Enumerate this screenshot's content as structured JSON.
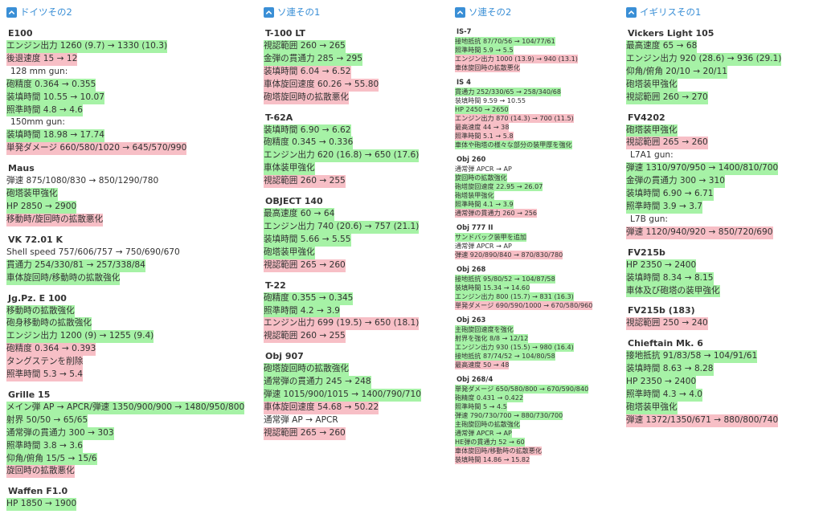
{
  "columns": [
    {
      "title": "ドイツその2",
      "tanks": [
        {
          "name": "E100",
          "lines": [
            {
              "t": "エンジン出力 1260 (9.7) → 1330 (10.3)",
              "c": "g"
            },
            {
              "t": "後退速度 15 → 12",
              "c": "r"
            },
            {
              "t": "128 mm gun:",
              "c": "n sub"
            },
            {
              "t": "砲精度 0.364 → 0.355",
              "c": "g"
            },
            {
              "t": "装填時間 10.55 → 10.07",
              "c": "g"
            },
            {
              "t": "照準時間 4.8 → 4.6",
              "c": "g"
            },
            {
              "t": "150mm gun:",
              "c": "n sub"
            },
            {
              "t": "装填時間 18.98 → 17.74",
              "c": "g"
            },
            {
              "t": "単発ダメージ 660/580/1020 → 645/570/990",
              "c": "r"
            }
          ]
        },
        {
          "name": "Maus",
          "lines": [
            {
              "t": "弾速 875/1080/830 → 850/1290/780",
              "c": "n"
            },
            {
              "t": "砲塔装甲強化",
              "c": "g"
            },
            {
              "t": "HP 2850 → 2900",
              "c": "g"
            },
            {
              "t": "移動時/旋回時の拡散悪化",
              "c": "r"
            }
          ]
        },
        {
          "name": "VK 72.01 K",
          "lines": [
            {
              "t": "Shell speed 757/606/757 → 750/690/670",
              "c": "n"
            },
            {
              "t": "貫通力 254/330/81 → 257/338/84",
              "c": "g"
            },
            {
              "t": "車体旋回時/移動時の拡散強化",
              "c": "g"
            }
          ]
        },
        {
          "name": "Jg.Pz. E 100",
          "lines": [
            {
              "t": "移動時の拡散強化",
              "c": "g"
            },
            {
              "t": "砲身移動時の拡散強化",
              "c": "g"
            },
            {
              "t": "エンジン出力 1200 (9) → 1255 (9.4)",
              "c": "g"
            },
            {
              "t": "砲精度 0.364 → 0.393",
              "c": "r"
            },
            {
              "t": "タングステンを削除",
              "c": "r"
            },
            {
              "t": "照準時間 5.3 → 5.4",
              "c": "r"
            }
          ]
        },
        {
          "name": "Grille 15",
          "lines": [
            {
              "t": "メイン弾 AP → APCR/弾速 1350/900/900 → 1480/950/800",
              "c": "g"
            },
            {
              "t": "射界 50/50 → 65/65",
              "c": "g"
            },
            {
              "t": "通常弾の貫通力 300 → 303",
              "c": "g"
            },
            {
              "t": "照準時間 3.8 → 3.6",
              "c": "g"
            },
            {
              "t": "仰角/俯角 15/5 → 15/6",
              "c": "g"
            },
            {
              "t": "旋回時の拡散悪化",
              "c": "r"
            }
          ]
        },
        {
          "name": "Waffen F1.0",
          "lines": [
            {
              "t": "HP 1850 → 1900",
              "c": "g"
            }
          ]
        }
      ]
    },
    {
      "title": "ソ連その1",
      "tanks": [
        {
          "name": "T-100 LT",
          "lines": [
            {
              "t": "視認範囲 260 → 265",
              "c": "g"
            },
            {
              "t": "金弾の貫通力 285 → 295",
              "c": "g"
            },
            {
              "t": "装填時間 6.04 → 6.52",
              "c": "r"
            },
            {
              "t": "車体旋回速度 60.26 → 55.80",
              "c": "r"
            },
            {
              "t": "砲塔旋回時の拡散悪化",
              "c": "r"
            }
          ]
        },
        {
          "name": "T-62A",
          "lines": [
            {
              "t": "装填時間 6.90 → 6.62",
              "c": "g"
            },
            {
              "t": "砲精度 0.345 → 0.336",
              "c": "g"
            },
            {
              "t": "エンジン出力 620 (16.8) → 650 (17.6)",
              "c": "g"
            },
            {
              "t": "車体装甲強化",
              "c": "g"
            },
            {
              "t": "視認範囲 260 → 255",
              "c": "r"
            }
          ]
        },
        {
          "name": "OBJECT 140",
          "lines": [
            {
              "t": "最高速度 60 → 64",
              "c": "g"
            },
            {
              "t": "エンジン出力 740 (20.6) → 757 (21.1)",
              "c": "g"
            },
            {
              "t": "装填時間 5.66 → 5.55",
              "c": "g"
            },
            {
              "t": "砲塔装甲強化",
              "c": "g"
            },
            {
              "t": "視認範囲 265 → 260",
              "c": "r"
            }
          ]
        },
        {
          "name": "T-22",
          "lines": [
            {
              "t": "砲精度 0.355 → 0.345",
              "c": "g"
            },
            {
              "t": "照準時間 4.2 → 3.9",
              "c": "g"
            },
            {
              "t": "エンジン出力 699 (19.5) → 650 (18.1)",
              "c": "r"
            },
            {
              "t": "視認範囲 260 → 255",
              "c": "r"
            }
          ]
        },
        {
          "name": "Obj 907",
          "lines": [
            {
              "t": "砲塔旋回時の拡散強化",
              "c": "g"
            },
            {
              "t": "通常弾の貫通力 245 → 248",
              "c": "g"
            },
            {
              "t": "弾速 1015/900/1015 → 1400/790/710",
              "c": "g"
            },
            {
              "t": "車体旋回速度 54.68 → 50.22",
              "c": "r"
            },
            {
              "t": "通常弾 AP → APCR",
              "c": "n"
            },
            {
              "t": "視認範囲 265 → 260",
              "c": "r"
            }
          ]
        }
      ]
    },
    {
      "title": "ソ連その2",
      "tanks": [
        {
          "name": "IS-7",
          "lines": [
            {
              "t": "接地抵抗 87/70/56 → 104/77/61",
              "c": "g"
            },
            {
              "t": "照準時間 5.9 → 5.5",
              "c": "g"
            },
            {
              "t": "エンジン出力 1000 (13.9) → 940 (13.1)",
              "c": "r"
            },
            {
              "t": "車体旋回時の拡散悪化",
              "c": "r"
            }
          ]
        },
        {
          "name": "IS 4",
          "lines": [
            {
              "t": "貫通力 252/330/65 → 258/340/68",
              "c": "g"
            },
            {
              "t": "装填時間 9.59 → 10.55",
              "c": "n"
            },
            {
              "t": "HP 2450 → 2650",
              "c": "g"
            },
            {
              "t": "エンジン出力 870 (14.3) → 700 (11.5)",
              "c": "r"
            },
            {
              "t": "最高速度 44 → 38",
              "c": "r"
            },
            {
              "t": "照準時間 5.1 → 5.8",
              "c": "r"
            },
            {
              "t": "車体や砲塔の様々な部分の装甲厚を強化",
              "c": "g"
            }
          ]
        },
        {
          "name": "Obj 260",
          "lines": [
            {
              "t": "通常弾 APCR → AP",
              "c": "n"
            },
            {
              "t": "旋回時の拡散強化",
              "c": "g"
            },
            {
              "t": "砲塔旋回速度 22.95 → 26.07",
              "c": "g"
            },
            {
              "t": "砲塔装甲強化",
              "c": "g"
            },
            {
              "t": "照準時間 4.1 → 3.9",
              "c": "g"
            },
            {
              "t": "通常弾の貫通力 260 → 256",
              "c": "r"
            }
          ]
        },
        {
          "name": "Obj 777 II",
          "lines": [
            {
              "t": "サンドバック装甲を追加",
              "c": "g"
            },
            {
              "t": "通常弾 APCR → AP",
              "c": "n"
            },
            {
              "t": "弾速 920/890/840 → 870/830/780",
              "c": "r"
            }
          ]
        },
        {
          "name": "Obj 268",
          "lines": [
            {
              "t": "接地抵抗 95/80/52 → 104/87/58",
              "c": "g"
            },
            {
              "t": "装填時間 15.34 → 14.60",
              "c": "g"
            },
            {
              "t": "エンジン出力 800 (15.7) → 831 (16.3)",
              "c": "g"
            },
            {
              "t": "単発ダメージ 690/590/1000 → 670/580/960",
              "c": "r"
            }
          ]
        },
        {
          "name": "Obj 263",
          "lines": [
            {
              "t": "主砲旋回速度を強化",
              "c": "g"
            },
            {
              "t": "射界を強化 8/8 → 12/12",
              "c": "g"
            },
            {
              "t": "エンジン出力 930 (15.5) → 980 (16.4)",
              "c": "g"
            },
            {
              "t": "接地抵抗 87/74/52 → 104/80/58",
              "c": "g"
            },
            {
              "t": "最高速度 50 → 48",
              "c": "r"
            }
          ]
        },
        {
          "name": "Obj 268/4",
          "lines": [
            {
              "t": "単発ダメージ 650/580/800 → 670/590/840",
              "c": "g"
            },
            {
              "t": "砲精度 0.431 → 0.422",
              "c": "g"
            },
            {
              "t": "照準時間 5 → 4.5",
              "c": "g"
            },
            {
              "t": "弾速 790/730/700 → 880/730/700",
              "c": "g"
            },
            {
              "t": "主砲旋回時の拡散強化",
              "c": "g"
            },
            {
              "t": "通常弾 APCR → AP",
              "c": "g"
            },
            {
              "t": "HE弾の貫通力 52 → 60",
              "c": "g"
            },
            {
              "t": "車体旋回時/移動時の拡散悪化",
              "c": "r"
            },
            {
              "t": "装填時間 14.86 → 15.82",
              "c": "r"
            }
          ]
        }
      ]
    },
    {
      "title": "イギリスその1",
      "tanks": [
        {
          "name": "Vickers Light 105",
          "lines": [
            {
              "t": "最高速度 65 → 68",
              "c": "g"
            },
            {
              "t": "エンジン出力 920 (28.6) → 936 (29.1)",
              "c": "g"
            },
            {
              "t": "仰角/俯角 20/10 → 20/11",
              "c": "g"
            },
            {
              "t": "砲塔装甲強化",
              "c": "g"
            },
            {
              "t": "視認範囲 260 → 270",
              "c": "g"
            }
          ]
        },
        {
          "name": "FV4202",
          "lines": [
            {
              "t": "砲塔装甲強化",
              "c": "g"
            },
            {
              "t": "視認範囲 265 → 260",
              "c": "r"
            },
            {
              "t": "L7A1 gun:",
              "c": "n sub"
            },
            {
              "t": "弾速 1310/970/950 → 1400/810/700",
              "c": "g"
            },
            {
              "t": "金弾の貫通力 300 → 310",
              "c": "g"
            },
            {
              "t": "装填時間 6.90 → 6.71",
              "c": "g"
            },
            {
              "t": "照準時間 3.9 → 3.7",
              "c": "g"
            },
            {
              "t": "L7B gun:",
              "c": "n sub"
            },
            {
              "t": "弾速 1120/940/920 → 850/720/690",
              "c": "r"
            }
          ]
        },
        {
          "name": "FV215b",
          "lines": [
            {
              "t": "HP 2350 → 2400",
              "c": "g"
            },
            {
              "t": "装填時間 8.34 → 8.15",
              "c": "g"
            },
            {
              "t": "車体及び砲塔の装甲強化",
              "c": "g"
            }
          ]
        },
        {
          "name": "FV215b (183)",
          "lines": [
            {
              "t": "視認範囲 250 → 240",
              "c": "r"
            }
          ]
        },
        {
          "name": "Chieftain Mk. 6",
          "lines": [
            {
              "t": "接地抵抗 91/83/58 → 104/91/61",
              "c": "g"
            },
            {
              "t": "装填時間 8.63 → 8.28",
              "c": "g"
            },
            {
              "t": "HP 2350 → 2400",
              "c": "g"
            },
            {
              "t": "照準時間 4.3 → 4.0",
              "c": "g"
            },
            {
              "t": "砲塔装甲強化",
              "c": "g"
            },
            {
              "t": "弾速 1372/1350/671 → 880/800/740",
              "c": "r"
            }
          ]
        }
      ]
    }
  ]
}
